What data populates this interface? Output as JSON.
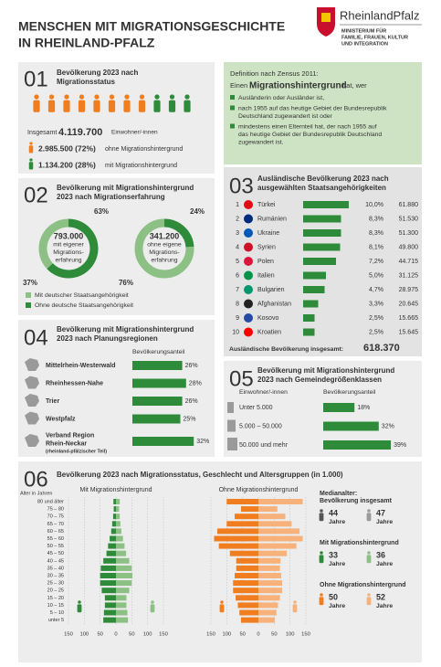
{
  "header": {
    "title": [
      "MENSCHEN MIT MIGRATIONSGESCHICHTE",
      "IN RHEINLAND-PFALZ"
    ],
    "logo": "RheinlandPfalz",
    "ministry": [
      "MINISTERIUM FÜR",
      "FAMILIE, FRAUEN, KULTUR",
      "UND INTEGRATION"
    ]
  },
  "s01": {
    "number": "01",
    "title": [
      "Bevölkerung 2023 nach",
      "Migrationsstatus"
    ],
    "total_label": "Insgesamt",
    "total": "4.119.700",
    "total_unit": "Einwohner/-innen",
    "without": {
      "value": "2.985.500 (72%)",
      "label": "ohne Migrationshintergrund"
    },
    "with": {
      "value": "1.134.200 (28%)",
      "label": "mit Migrationshintergrund"
    }
  },
  "definition": {
    "title": "Definition nach Zensus 2011:",
    "intro": "Einen",
    "keyword": "Migrationshintergrund",
    "intro_end": "hat, wer",
    "bullets": [
      [
        "Ausländerin oder Ausländer ist,"
      ],
      [
        "nach 1955 auf das heutige Gebiet der Bundesrepublik",
        "Deutschland zugewandert ist oder"
      ],
      [
        "mindestens einen Elternteil hat, der nach 1955 auf",
        "das heutige Gebiet der Bundesrepublik Deutschland",
        "zugewandert ist."
      ]
    ]
  },
  "s02": {
    "number": "02",
    "title": [
      "Bevölkerung mit Migrationshintergrund",
      "2023 nach Migrationserfahrung"
    ],
    "donuts": [
      {
        "center": [
          "793.000",
          "mit eigener",
          "Migrations-",
          "erfahrung"
        ],
        "without_german": {
          "value": 63,
          "label": "63%"
        },
        "with_german": {
          "value": 37,
          "label": "37%"
        }
      },
      {
        "center": [
          "341.200",
          "ohne eigene",
          "Migrations-",
          "erfahrung"
        ],
        "without_german": {
          "value": 24,
          "label": "24%"
        },
        "with_german": {
          "value": 76,
          "label": "76%"
        }
      }
    ],
    "legend": [
      "Mit deutscher Staatsangehörigkeit",
      "Ohne deutsche Staatsangehörigkeit"
    ]
  },
  "s03": {
    "number": "03",
    "title": [
      "Ausländische Bevölkerung 2023 nach",
      "ausgewählten Staatsangehörigkeiten"
    ],
    "rows": [
      {
        "rank": "1",
        "country": "Türkei",
        "share": {
          "value": 10.0,
          "label": "10,0%"
        },
        "count": "61.880"
      },
      {
        "rank": "2",
        "country": "Rumänien",
        "share": {
          "value": 8.3,
          "label": "8,3%"
        },
        "count": "51.530"
      },
      {
        "rank": "3",
        "country": "Ukraine",
        "share": {
          "value": 8.3,
          "label": "8,3%"
        },
        "count": "51.300"
      },
      {
        "rank": "4",
        "country": "Syrien",
        "share": {
          "value": 8.1,
          "label": "8,1%"
        },
        "count": "49.800"
      },
      {
        "rank": "5",
        "country": "Polen",
        "share": {
          "value": 7.2,
          "label": "7,2%"
        },
        "count": "44.715"
      },
      {
        "rank": "6",
        "country": "Italien",
        "share": {
          "value": 5.0,
          "label": "5,0%"
        },
        "count": "31.125"
      },
      {
        "rank": "7",
        "country": "Bulgarien",
        "share": {
          "value": 4.7,
          "label": "4,7%"
        },
        "count": "28.975"
      },
      {
        "rank": "8",
        "country": "Afghanistan",
        "share": {
          "value": 3.3,
          "label": "3,3%"
        },
        "count": "20.645"
      },
      {
        "rank": "9",
        "country": "Kosovo",
        "share": {
          "value": 2.5,
          "label": "2,5%"
        },
        "count": "15.665"
      },
      {
        "rank": "10",
        "country": "Kroatien",
        "share": {
          "value": 2.5,
          "label": "2,5%"
        },
        "count": "15.645"
      }
    ],
    "total_label": "Ausländische Bevölkerung insgesamt:",
    "total": "618.370"
  },
  "s04": {
    "number": "04",
    "title": [
      "Bevölkerung mit Migrationshintergrund",
      "2023 nach Planungsregionen"
    ],
    "header": "Bevölkerungsanteil",
    "rows": [
      {
        "name": [
          "Mittelrhein-Westerwald"
        ],
        "share": {
          "value": 26,
          "label": "26%"
        }
      },
      {
        "name": [
          "Rheinhessen-Nahe"
        ],
        "share": {
          "value": 28,
          "label": "28%"
        }
      },
      {
        "name": [
          "Trier"
        ],
        "share": {
          "value": 26,
          "label": "26%"
        }
      },
      {
        "name": [
          "Westpfalz"
        ],
        "share": {
          "value": 25,
          "label": "25%"
        }
      },
      {
        "name": [
          "Verband Region",
          "Rhein-Neckar"
        ],
        "note": "(rheinland-pfälzischer Teil)",
        "share": {
          "value": 32,
          "label": "32%"
        }
      }
    ]
  },
  "s05": {
    "number": "05",
    "title": [
      "Bevölkerung mit Migrationshintergrund",
      "2023 nach Gemeindegrößenklassen"
    ],
    "header_size": "Einwohner/-innen",
    "header_share": "Bevölkerungsanteil",
    "rows": [
      {
        "size": "Unter 5.000",
        "share": {
          "value": 18,
          "label": "18%"
        }
      },
      {
        "size": "5.000 – 50.000",
        "share": {
          "value": 32,
          "label": "32%"
        }
      },
      {
        "size": "50.000 und mehr",
        "share": {
          "value": 39,
          "label": "39%"
        }
      }
    ]
  },
  "s06": {
    "number": "06",
    "title": "Bevölkerung 2023 nach Migrationsstatus, Geschlecht und Altersgruppen (in 1.000)",
    "age_axis_label": "Alter in Jahren",
    "ages": [
      "80 und älter",
      "75 – 80",
      "70 – 75",
      "65 – 70",
      "60 – 65",
      "55 – 60",
      "50 – 55",
      "45 – 50",
      "40 – 45",
      "35 – 40",
      "30 – 35",
      "25 – 30",
      "20 – 25",
      "15 – 20",
      "10 – 15",
      "5 – 10",
      "unter 5"
    ],
    "with": {
      "title": "Mit Migrationshintergrund",
      "male_color": "#2e8b3a",
      "female_color": "#8cc084",
      "xlim": [
        -150,
        150
      ],
      "xticks": [
        {
          "value": -150,
          "label": "150"
        },
        {
          "value": -100,
          "label": "100"
        },
        {
          "value": -50,
          "label": "50"
        },
        0,
        50,
        100,
        150
      ],
      "male": [
        8,
        7,
        9,
        12,
        15,
        20,
        25,
        30,
        40,
        48,
        50,
        50,
        45,
        35,
        35,
        38,
        40
      ],
      "female": [
        12,
        10,
        12,
        14,
        17,
        22,
        27,
        32,
        42,
        50,
        52,
        50,
        42,
        33,
        33,
        36,
        38
      ]
    },
    "without": {
      "title": "Ohne Migrationshintergrund",
      "male_color": "#f07d1e",
      "female_color": "#f6b27a",
      "xlim": [
        -150,
        150
      ],
      "xticks": [
        {
          "value": -150,
          "label": "150"
        },
        {
          "value": -100,
          "label": "100"
        },
        {
          "value": -50,
          "label": "50"
        },
        0,
        50,
        100,
        150
      ],
      "male": [
        100,
        55,
        75,
        100,
        130,
        140,
        125,
        90,
        70,
        70,
        75,
        80,
        80,
        72,
        65,
        60,
        55
      ],
      "female": [
        140,
        60,
        85,
        105,
        130,
        140,
        120,
        90,
        70,
        68,
        72,
        75,
        75,
        68,
        62,
        57,
        52
      ]
    },
    "median": {
      "unit": "Jahre",
      "groups": [
        {
          "title": [
            "Medianalter:",
            "Bevölkerung insgesamt"
          ],
          "male": "44",
          "female": "47",
          "male_color": "#555555",
          "female_color": "#9a9a9a"
        },
        {
          "title": [
            "Mit Migrationshintergrund"
          ],
          "male": "33",
          "female": "36",
          "male_color": "#2e8b3a",
          "female_color": "#8cc084"
        },
        {
          "title": [
            "Ohne Migrationshintergrund"
          ],
          "male": "50",
          "female": "52",
          "male_color": "#f07d1e",
          "female_color": "#f6b27a"
        }
      ]
    }
  }
}
